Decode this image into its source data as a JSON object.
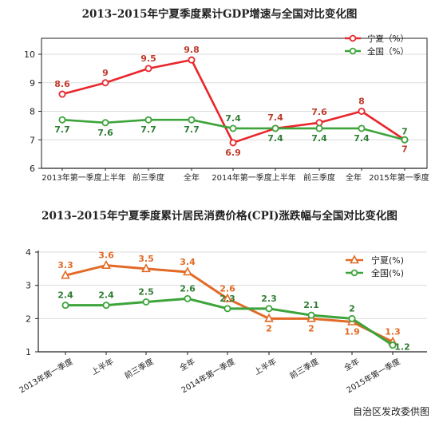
{
  "source_note": "自治区发改委供图",
  "colors": {
    "ningxia_line": "#e8262b",
    "national_line": "#3ca43a",
    "ningxia_label": "#c0392b",
    "national_label": "#2e7d32",
    "cpi_ningxia_line": "#e26a26",
    "cpi_ningxia_label": "#e26a26",
    "axis": "#222222",
    "grid": "#dcdcdc"
  },
  "chart_data": [
    {
      "type": "line",
      "title": "2013–2015年宁夏季度累计GDP增速与全国对比变化图",
      "categories": [
        "2013年第一季度",
        "上半年",
        "前三季度",
        "全年",
        "2014年第一季度",
        "上半年",
        "前三季度",
        "全年",
        "2015年第一季度"
      ],
      "x_tick_labels": [
        "2013年第一季度上半年",
        "前三季度",
        "全年",
        "2014年第一季度上半年",
        "前三季度",
        "全年",
        "2015年第一季度"
      ],
      "ylim": [
        6,
        10
      ],
      "yticks": [
        6,
        7,
        8,
        9,
        10
      ],
      "legend": "top-right",
      "marker": "circle",
      "series": [
        {
          "name": "宁夏（%）",
          "values": [
            8.6,
            9,
            9.5,
            9.8,
            6.9,
            7.4,
            7.6,
            8,
            7
          ]
        },
        {
          "name": "全国（%）",
          "values": [
            7.7,
            7.6,
            7.7,
            7.7,
            7.4,
            7.4,
            7.4,
            7.4,
            7
          ]
        }
      ]
    },
    {
      "type": "line",
      "title": "2013–2015年宁夏季度累计居民消费价格(CPI)涨跌幅与全国对比变化图",
      "categories": [
        "2013年第一季度",
        "上半年",
        "前三季度",
        "全年",
        "2014年第一季度",
        "上半年",
        "前三季度",
        "全年",
        "2015年第一季度"
      ],
      "x_tick_labels": [
        "2013年第一季度",
        "上半年",
        "前三季度",
        "全年",
        "2014年第一季度",
        "上半年",
        "前三季度",
        "全年",
        "2015年第一季度"
      ],
      "ylim": [
        1,
        4
      ],
      "yticks": [
        1,
        2,
        3,
        4
      ],
      "legend": "top-right",
      "series": [
        {
          "name": "宁夏(%)",
          "marker": "triangle",
          "values": [
            3.3,
            3.6,
            3.5,
            3.4,
            2.6,
            2,
            2,
            1.9,
            1.3
          ]
        },
        {
          "name": "全国(%)",
          "marker": "circle",
          "values": [
            2.4,
            2.4,
            2.5,
            2.6,
            2.3,
            2.3,
            2.1,
            2,
            1.2
          ]
        }
      ]
    }
  ]
}
